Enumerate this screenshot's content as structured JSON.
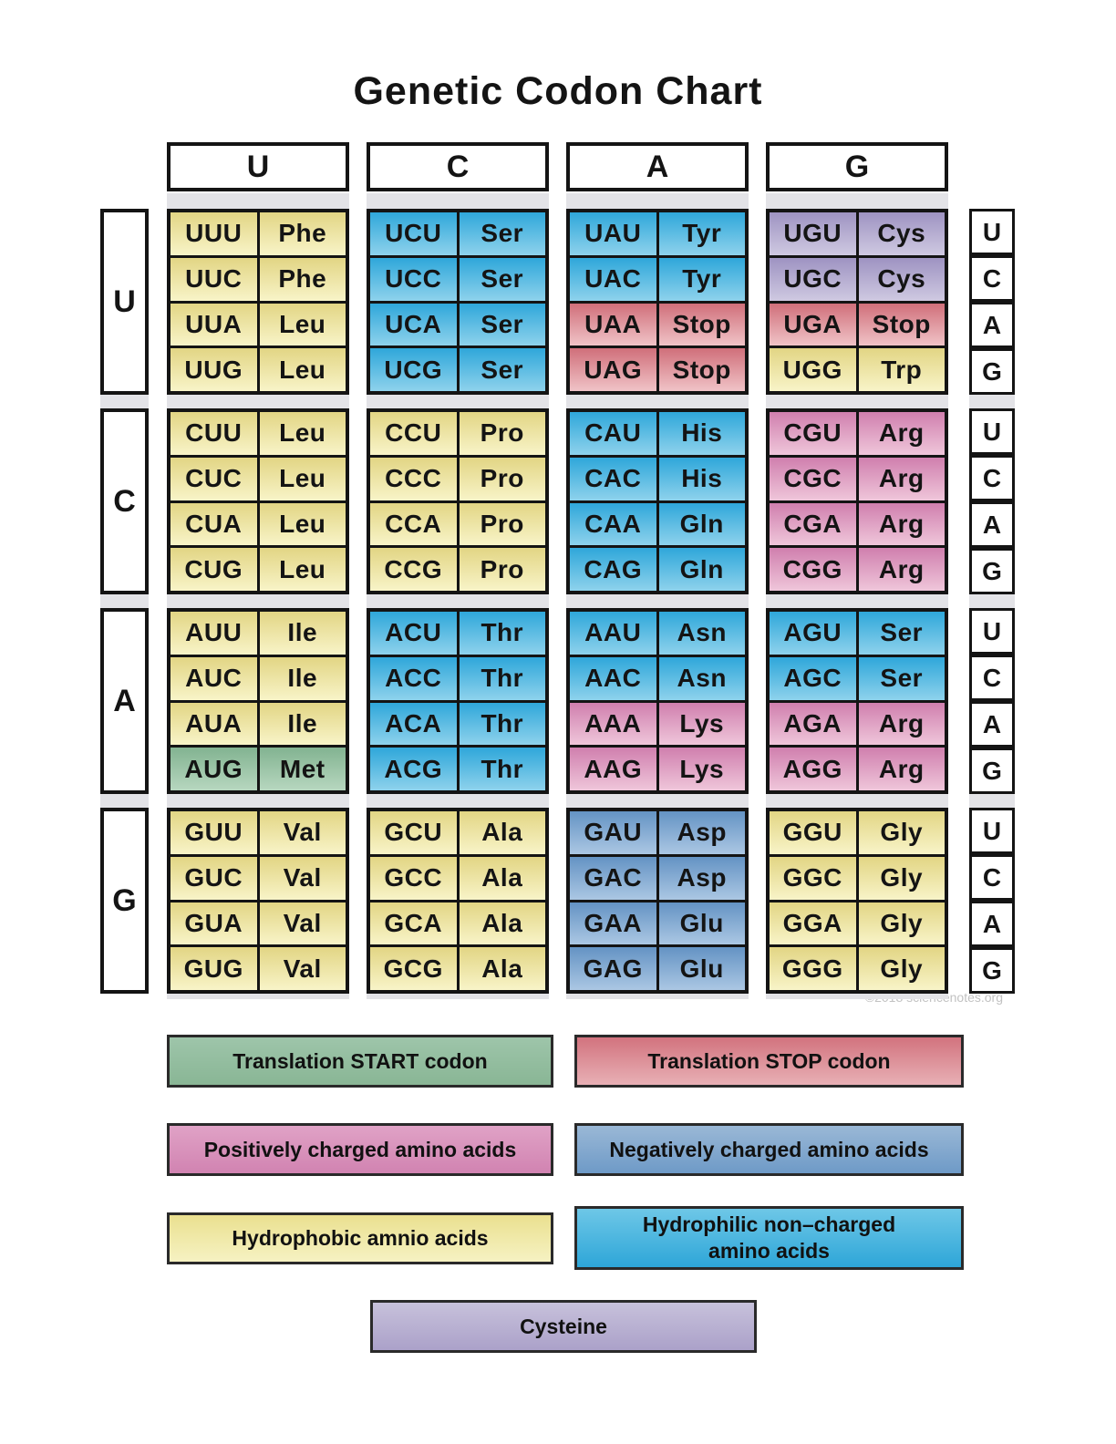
{
  "watermark": "©2018 sciencenotes.org",
  "category_colors": {
    "hydrophobic": "#e8dc90",
    "hydrophilic": "#3fb0dd",
    "positively_charged": "#d888b5",
    "negatively_charged": "#6f9cca",
    "stop": "#d8808a",
    "start": "#8fbc9b",
    "cysteine": "#aba1c9"
  },
  "legend": [
    {
      "cls": "start",
      "lines": [
        "Translation START codon"
      ]
    },
    {
      "cls": "stop",
      "lines": [
        "Translation STOP codon"
      ]
    },
    {
      "cls": "positive",
      "lines": [
        "Positively charged amino acids"
      ]
    },
    {
      "cls": "negative",
      "lines": [
        "Negatively charged amino acids"
      ]
    },
    {
      "cls": "hydrophobic",
      "lines": [
        "Hydrophobic amnio acids"
      ]
    },
    {
      "cls": "hydrophilic",
      "lines": [
        "Hydrophilic non–charged",
        "amino acids"
      ]
    },
    {
      "cls": "cysteine",
      "lines": [
        "Cysteine"
      ]
    }
  ],
  "chart_data": {
    "type": "table",
    "title": "Genetic Codon Chart",
    "col_headers": [
      "U",
      "C",
      "A",
      "G"
    ],
    "row_headers": [
      "U",
      "C",
      "A",
      "G"
    ],
    "third_base_labels": [
      "U",
      "C",
      "A",
      "G"
    ],
    "blocks": [
      [
        [
          {
            "codon": "UUU",
            "aa": "Phe",
            "cls": "hydrophobic"
          },
          {
            "codon": "UUC",
            "aa": "Phe",
            "cls": "hydrophobic"
          },
          {
            "codon": "UUA",
            "aa": "Leu",
            "cls": "hydrophobic"
          },
          {
            "codon": "UUG",
            "aa": "Leu",
            "cls": "hydrophobic"
          }
        ],
        [
          {
            "codon": "UCU",
            "aa": "Ser",
            "cls": "hydrophilic"
          },
          {
            "codon": "UCC",
            "aa": "Ser",
            "cls": "hydrophilic"
          },
          {
            "codon": "UCA",
            "aa": "Ser",
            "cls": "hydrophilic"
          },
          {
            "codon": "UCG",
            "aa": "Ser",
            "cls": "hydrophilic"
          }
        ],
        [
          {
            "codon": "UAU",
            "aa": "Tyr",
            "cls": "hydrophilic"
          },
          {
            "codon": "UAC",
            "aa": "Tyr",
            "cls": "hydrophilic"
          },
          {
            "codon": "UAA",
            "aa": "Stop",
            "cls": "stop"
          },
          {
            "codon": "UAG",
            "aa": "Stop",
            "cls": "stop"
          }
        ],
        [
          {
            "codon": "UGU",
            "aa": "Cys",
            "cls": "cysteine"
          },
          {
            "codon": "UGC",
            "aa": "Cys",
            "cls": "cysteine"
          },
          {
            "codon": "UGA",
            "aa": "Stop",
            "cls": "stop"
          },
          {
            "codon": "UGG",
            "aa": "Trp",
            "cls": "hydrophobic"
          }
        ]
      ],
      [
        [
          {
            "codon": "CUU",
            "aa": "Leu",
            "cls": "hydrophobic"
          },
          {
            "codon": "CUC",
            "aa": "Leu",
            "cls": "hydrophobic"
          },
          {
            "codon": "CUA",
            "aa": "Leu",
            "cls": "hydrophobic"
          },
          {
            "codon": "CUG",
            "aa": "Leu",
            "cls": "hydrophobic"
          }
        ],
        [
          {
            "codon": "CCU",
            "aa": "Pro",
            "cls": "hydrophobic"
          },
          {
            "codon": "CCC",
            "aa": "Pro",
            "cls": "hydrophobic"
          },
          {
            "codon": "CCA",
            "aa": "Pro",
            "cls": "hydrophobic"
          },
          {
            "codon": "CCG",
            "aa": "Pro",
            "cls": "hydrophobic"
          }
        ],
        [
          {
            "codon": "CAU",
            "aa": "His",
            "cls": "hydrophilic"
          },
          {
            "codon": "CAC",
            "aa": "His",
            "cls": "hydrophilic"
          },
          {
            "codon": "CAA",
            "aa": "Gln",
            "cls": "hydrophilic"
          },
          {
            "codon": "CAG",
            "aa": "Gln",
            "cls": "hydrophilic"
          }
        ],
        [
          {
            "codon": "CGU",
            "aa": "Arg",
            "cls": "positive"
          },
          {
            "codon": "CGC",
            "aa": "Arg",
            "cls": "positive"
          },
          {
            "codon": "CGA",
            "aa": "Arg",
            "cls": "positive"
          },
          {
            "codon": "CGG",
            "aa": "Arg",
            "cls": "positive"
          }
        ]
      ],
      [
        [
          {
            "codon": "AUU",
            "aa": "Ile",
            "cls": "hydrophobic"
          },
          {
            "codon": "AUC",
            "aa": "Ile",
            "cls": "hydrophobic"
          },
          {
            "codon": "AUA",
            "aa": "Ile",
            "cls": "hydrophobic"
          },
          {
            "codon": "AUG",
            "aa": "Met",
            "cls": "start"
          }
        ],
        [
          {
            "codon": "ACU",
            "aa": "Thr",
            "cls": "hydrophilic"
          },
          {
            "codon": "ACC",
            "aa": "Thr",
            "cls": "hydrophilic"
          },
          {
            "codon": "ACA",
            "aa": "Thr",
            "cls": "hydrophilic"
          },
          {
            "codon": "ACG",
            "aa": "Thr",
            "cls": "hydrophilic"
          }
        ],
        [
          {
            "codon": "AAU",
            "aa": "Asn",
            "cls": "hydrophilic"
          },
          {
            "codon": "AAC",
            "aa": "Asn",
            "cls": "hydrophilic"
          },
          {
            "codon": "AAA",
            "aa": "Lys",
            "cls": "positive"
          },
          {
            "codon": "AAG",
            "aa": "Lys",
            "cls": "positive"
          }
        ],
        [
          {
            "codon": "AGU",
            "aa": "Ser",
            "cls": "hydrophilic"
          },
          {
            "codon": "AGC",
            "aa": "Ser",
            "cls": "hydrophilic"
          },
          {
            "codon": "AGA",
            "aa": "Arg",
            "cls": "positive"
          },
          {
            "codon": "AGG",
            "aa": "Arg",
            "cls": "positive"
          }
        ]
      ],
      [
        [
          {
            "codon": "GUU",
            "aa": "Val",
            "cls": "hydrophobic"
          },
          {
            "codon": "GUC",
            "aa": "Val",
            "cls": "hydrophobic"
          },
          {
            "codon": "GUA",
            "aa": "Val",
            "cls": "hydrophobic"
          },
          {
            "codon": "GUG",
            "aa": "Val",
            "cls": "hydrophobic"
          }
        ],
        [
          {
            "codon": "GCU",
            "aa": "Ala",
            "cls": "hydrophobic"
          },
          {
            "codon": "GCC",
            "aa": "Ala",
            "cls": "hydrophobic"
          },
          {
            "codon": "GCA",
            "aa": "Ala",
            "cls": "hydrophobic"
          },
          {
            "codon": "GCG",
            "aa": "Ala",
            "cls": "hydrophobic"
          }
        ],
        [
          {
            "codon": "GAU",
            "aa": "Asp",
            "cls": "negative"
          },
          {
            "codon": "GAC",
            "aa": "Asp",
            "cls": "negative"
          },
          {
            "codon": "GAA",
            "aa": "Glu",
            "cls": "negative"
          },
          {
            "codon": "GAG",
            "aa": "Glu",
            "cls": "negative"
          }
        ],
        [
          {
            "codon": "GGU",
            "aa": "Gly",
            "cls": "hydrophobic"
          },
          {
            "codon": "GGC",
            "aa": "Gly",
            "cls": "hydrophobic"
          },
          {
            "codon": "GGA",
            "aa": "Gly",
            "cls": "hydrophobic"
          },
          {
            "codon": "GGG",
            "aa": "Gly",
            "cls": "hydrophobic"
          }
        ]
      ]
    ]
  }
}
